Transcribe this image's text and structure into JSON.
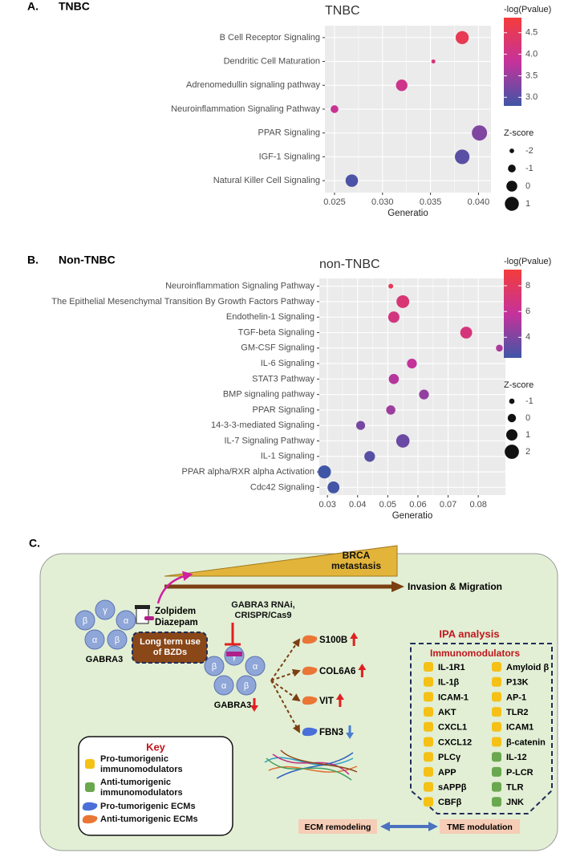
{
  "panels": [
    {
      "letter": "A.",
      "title": "TNBC"
    },
    {
      "letter": "B.",
      "title": "Non-TNBC"
    },
    {
      "letter": "C."
    }
  ],
  "chart_data": [
    {
      "type": "dot",
      "title": "TNBC",
      "categories": [
        "B Cell Receptor Signaling",
        "Dendritic Cell Maturation",
        "Adrenomedullin signaling pathway",
        "Neuroinflammation Signaling Pathway",
        "PPAR Signaling",
        "IGF-1 Signaling",
        "Natural Killer Cell Signaling"
      ],
      "values": [
        0.0383,
        0.0353,
        0.032,
        0.025,
        0.0401,
        0.0383,
        0.0268
      ],
      "color_values": [
        4.6,
        4.2,
        4.0,
        3.9,
        3.3,
        3.0,
        2.9
      ],
      "size_values": [
        0.7,
        -2.2,
        0.2,
        -1,
        1.4,
        1.2,
        0.5
      ],
      "xlabel": "Generatio",
      "xlim": [
        0.024,
        0.0413
      ],
      "xticks": [
        0.025,
        {
          "value": 0.03,
          "label": "0.030"
        },
        0.035,
        {
          "value": 0.04,
          "label": "0.040"
        }
      ],
      "grid": true,
      "color_title": "-log(Pvalue)",
      "color_lim": [
        2.8,
        4.85
      ],
      "color_ticks": [
        {
          "value": 3,
          "label": "3.0"
        },
        3.5,
        {
          "value": 4,
          "label": "4.0"
        },
        4.5
      ],
      "colors": [
        "#3f56a6",
        "#c5329b",
        "#f43c3c"
      ],
      "size_title": "Z-score",
      "size_lim": [
        -2.2,
        1.4
      ],
      "size_ticks": [
        -2,
        -1,
        0,
        1
      ]
    },
    {
      "type": "dot",
      "title": "non-TNBC",
      "categories": [
        "Neuroinflammation Signaling Pathway",
        "The Epithelial Mesenchymal Transition By Growth Factors Pathway",
        "Endothelin-1 Signaling",
        "TGF-beta Signaling",
        "GM-CSF Signaling",
        "IL-6 Signaling",
        "STAT3 Pathway",
        "BMP signaling pathway",
        "PPAR Signaling",
        "14-3-3-mediated Signaling",
        "IL-7 Signaling Pathway",
        "IL-1 Signaling",
        "PPAR alpha/RXR alpha Activation",
        "Cdc42 Signaling"
      ],
      "values": [
        0.051,
        0.055,
        0.052,
        0.076,
        0.087,
        0.058,
        0.052,
        0.062,
        0.051,
        0.041,
        0.055,
        0.044,
        0.029,
        0.032
      ],
      "color_values": [
        8.3,
        7.2,
        6.8,
        7.0,
        5.2,
        5.8,
        5.4,
        4.5,
        4.8,
        3.8,
        3.5,
        3.0,
        2.3,
        2.5
      ],
      "size_values": [
        -1.2,
        1.5,
        1,
        1.2,
        -0.5,
        0.5,
        0.6,
        0.5,
        0.3,
        0.2,
        1.7,
        0.8,
        1.6,
        1.2
      ],
      "xlabel": "Generatio",
      "xlim": [
        0.0273,
        0.089
      ],
      "xticks": [
        0.03,
        0.04,
        0.05,
        0.06,
        0.07,
        0.08
      ],
      "grid": true,
      "color_title": "-log(Pvalue)",
      "color_lim": [
        2.4,
        9.25
      ],
      "color_ticks": [
        4,
        6,
        8
      ],
      "colors": [
        "#3f56a6",
        "#c5329b",
        "#f43c3c"
      ],
      "size_title": "Z-score",
      "size_lim": [
        -1.2,
        1.8
      ],
      "size_ticks": [
        -1,
        0,
        1,
        2
      ]
    }
  ],
  "diagram": {
    "metastasis": "BRCA metastasis",
    "invasion": "Invasion & Migration",
    "receptor_subunits": [
      "β",
      "γ",
      "α",
      "α",
      "β"
    ],
    "receptor_label": "GABRA3",
    "drugs": [
      "Zolpidem",
      "Diazepam"
    ],
    "bzd": "Long term use of BZDs",
    "knockdown": "GABRA3 RNAi, CRISPR/Cas9",
    "ecms": [
      {
        "label": "S100B",
        "kind": "anti_ecm",
        "change": "up"
      },
      {
        "label": "COL6A6",
        "kind": "anti_ecm",
        "change": "up"
      },
      {
        "label": "VIT",
        "kind": "anti_ecm",
        "change": "up"
      },
      {
        "label": "FBN3",
        "kind": "pro_ecm",
        "change": "down"
      }
    ],
    "ecm_remodeling": "ECM remodeling",
    "tme_modulation": "TME modulation",
    "ipa": "IPA analysis",
    "immunomodulators": "Immunomodulators",
    "modulators": [
      [
        {
          "label": "IL-1R1",
          "kind": "pro_immune"
        },
        {
          "label": "IL-1β",
          "kind": "pro_immune"
        },
        {
          "label": "ICAM-1",
          "kind": "pro_immune"
        },
        {
          "label": "AKT",
          "kind": "pro_immune"
        },
        {
          "label": "CXCL1",
          "kind": "pro_immune"
        },
        {
          "label": "CXCL12",
          "kind": "pro_immune"
        },
        {
          "label": "PLCγ",
          "kind": "pro_immune"
        },
        {
          "label": "APP",
          "kind": "pro_immune"
        },
        {
          "label": "sAPPβ",
          "kind": "pro_immune"
        },
        {
          "label": "CBFβ",
          "kind": "pro_immune"
        }
      ],
      [
        {
          "label": "Amyloid β",
          "kind": "pro_immune"
        },
        {
          "label": "P13K",
          "kind": "pro_immune"
        },
        {
          "label": "AP-1",
          "kind": "pro_immune"
        },
        {
          "label": "TLR2",
          "kind": "pro_immune"
        },
        {
          "label": "ICAM1",
          "kind": "pro_immune"
        },
        {
          "label": "β-catenin",
          "kind": "pro_immune"
        },
        {
          "label": "IL-12",
          "kind": "anti_immune"
        },
        {
          "label": "P-LCR",
          "kind": "anti_immune"
        },
        {
          "label": "TLR",
          "kind": "anti_immune"
        },
        {
          "label": "JNK",
          "kind": "anti_immune"
        }
      ]
    ],
    "key": {
      "title": "Key",
      "items": [
        {
          "label": "Pro-tumorigenic immunomodulators",
          "kind": "pro_immune"
        },
        {
          "label": "Anti-tumorigenic immunomodulators",
          "kind": "anti_immune"
        },
        {
          "label": "Pro-tumorigenic ECMs",
          "kind": "pro_ecm"
        },
        {
          "label": "Anti-tumorigenic ECMs",
          "kind": "anti_ecm"
        }
      ]
    },
    "kind_colors": {
      "pro_immune": "#f5c116",
      "anti_immune": "#6aa84f",
      "pro_ecm": "#4a6fd8",
      "anti_ecm": "#ea7636"
    }
  }
}
